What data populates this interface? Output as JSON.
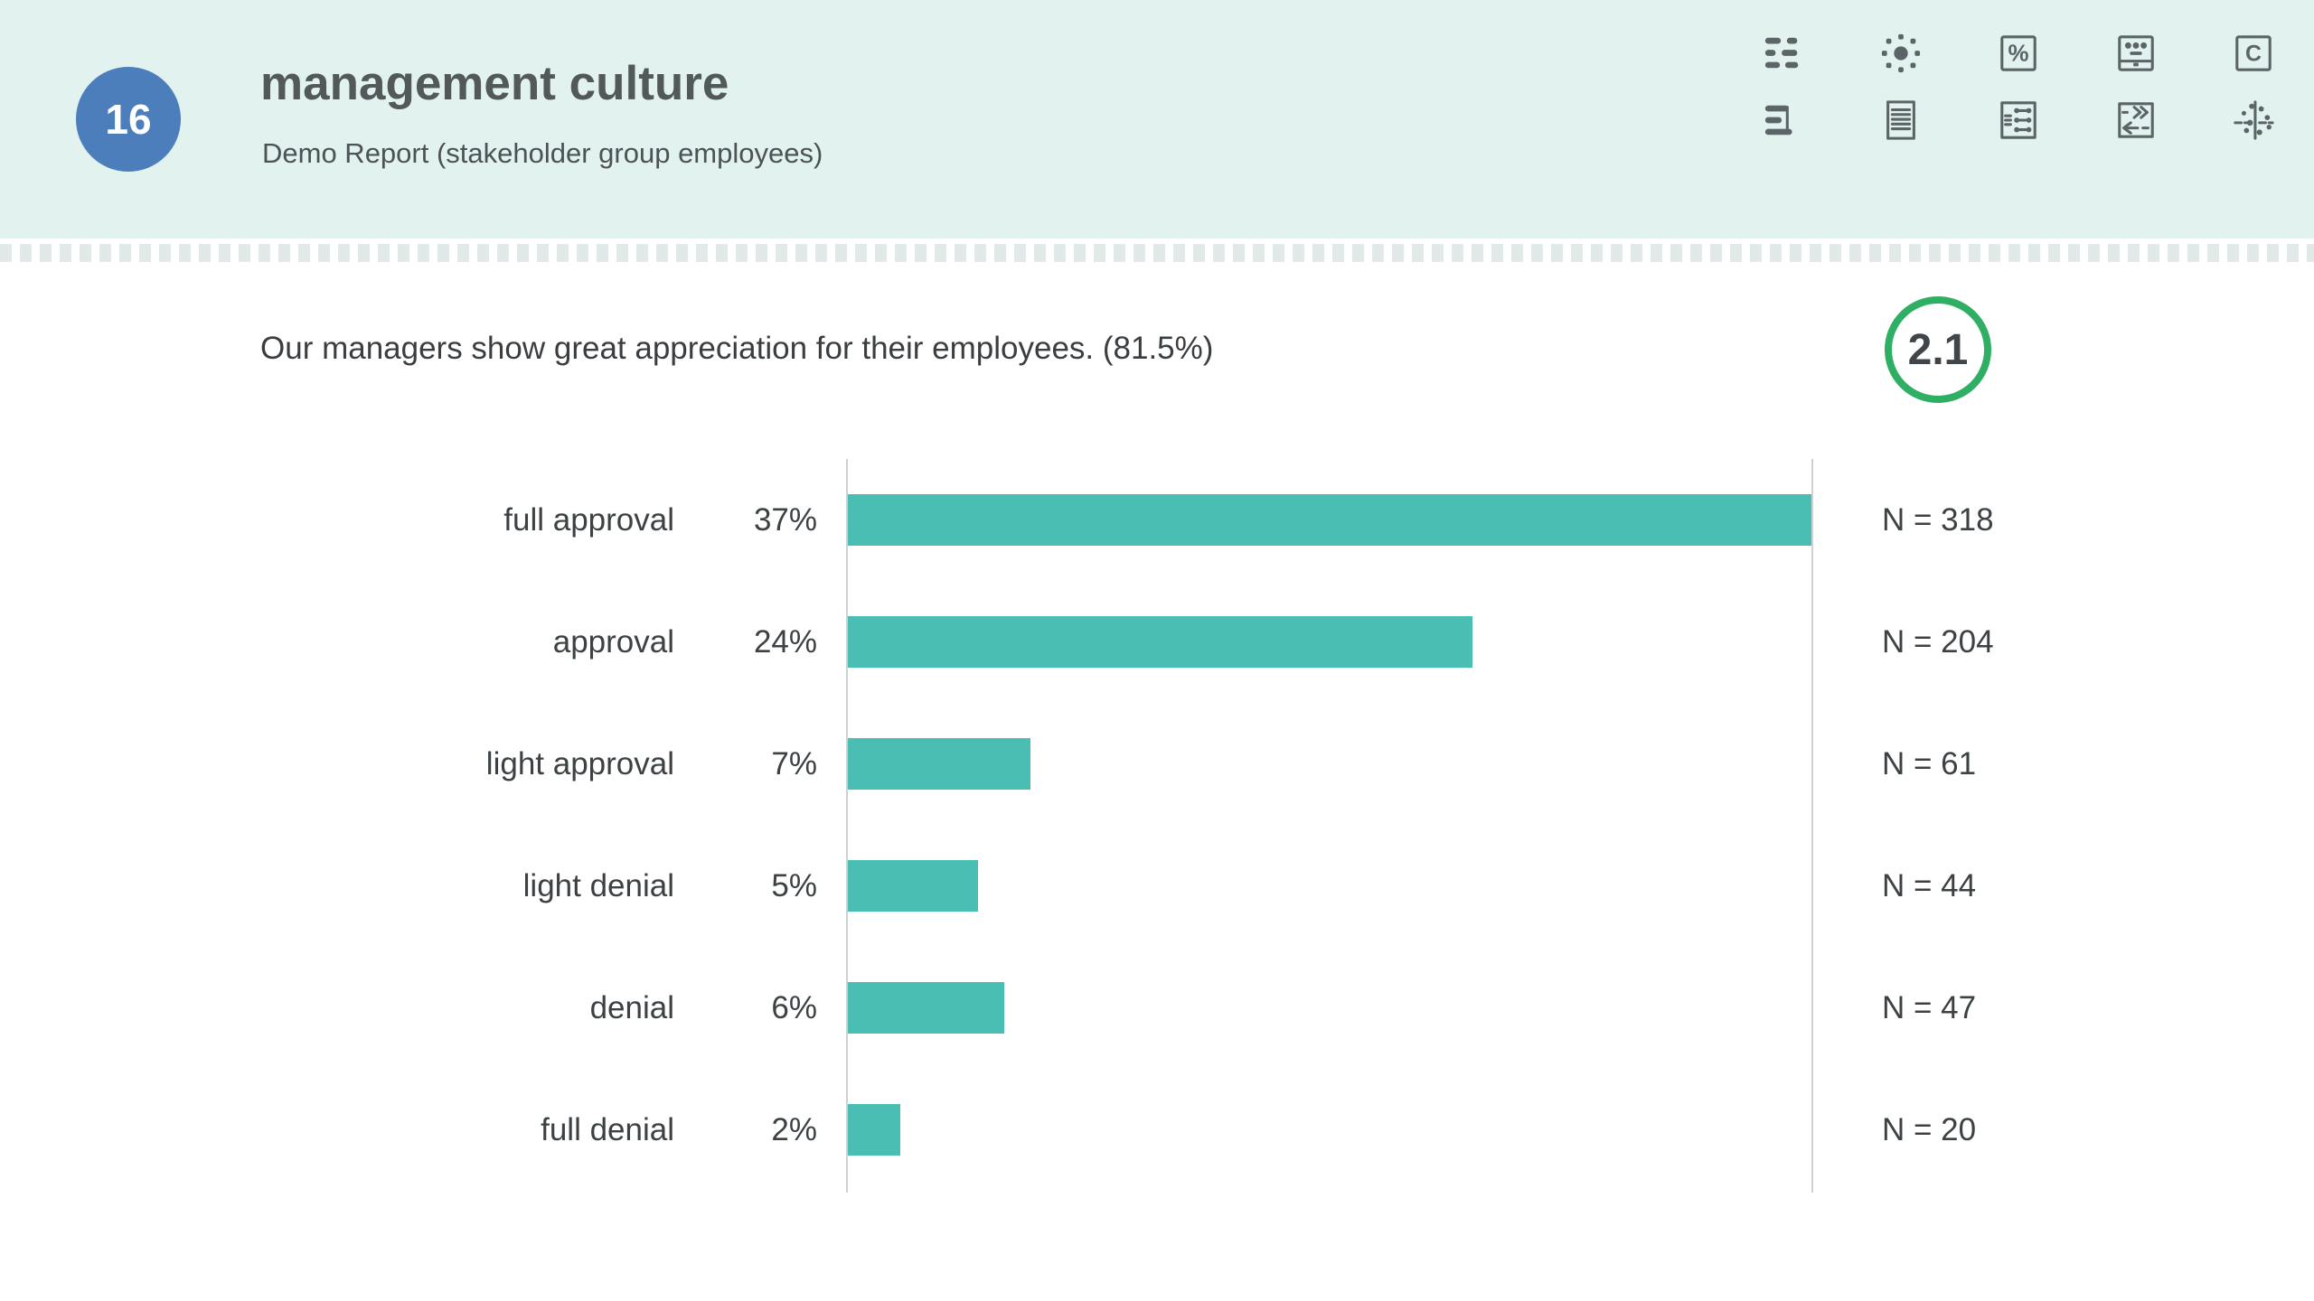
{
  "header": {
    "page_number": "16",
    "title": "management culture",
    "subtitle": "Demo Report (stakeholder group employees)",
    "bg_color": "#E1F2EF",
    "badge_color": "#4B7EBB",
    "toolbar_icons": [
      "legend-rows-icon",
      "sun-chart-icon",
      "percent-icon",
      "mean-display-icon",
      "letter-c-icon",
      "hbar-chart-icon",
      "document-icon",
      "matrix-profile-icon",
      "compare-arrows-icon",
      "scatter-plot-icon"
    ]
  },
  "question": {
    "text": "Our managers show great appreciation for their employees. (81.5%)",
    "score": "2.1",
    "score_ring_color": "#2FAF64"
  },
  "chart_data": {
    "type": "bar",
    "orientation": "horizontal",
    "title": "",
    "xlabel": "",
    "ylabel": "",
    "categories": [
      "full approval",
      "approval",
      "light approval",
      "light denial",
      "denial",
      "full denial"
    ],
    "values": [
      37,
      24,
      7,
      5,
      6,
      2
    ],
    "value_labels": [
      "37%",
      "24%",
      "7%",
      "5%",
      "6%",
      "2%"
    ],
    "n_values": [
      318,
      204,
      61,
      44,
      47,
      20
    ],
    "n_labels": [
      "N = 318",
      "N = 204",
      "N = 61",
      "N = 44",
      "N = 47",
      "N = 20"
    ],
    "xlim": [
      0,
      37
    ],
    "grid": false,
    "legend": false,
    "bar_color": "#4ABEB2",
    "axis_color": "#CCD1D1"
  }
}
